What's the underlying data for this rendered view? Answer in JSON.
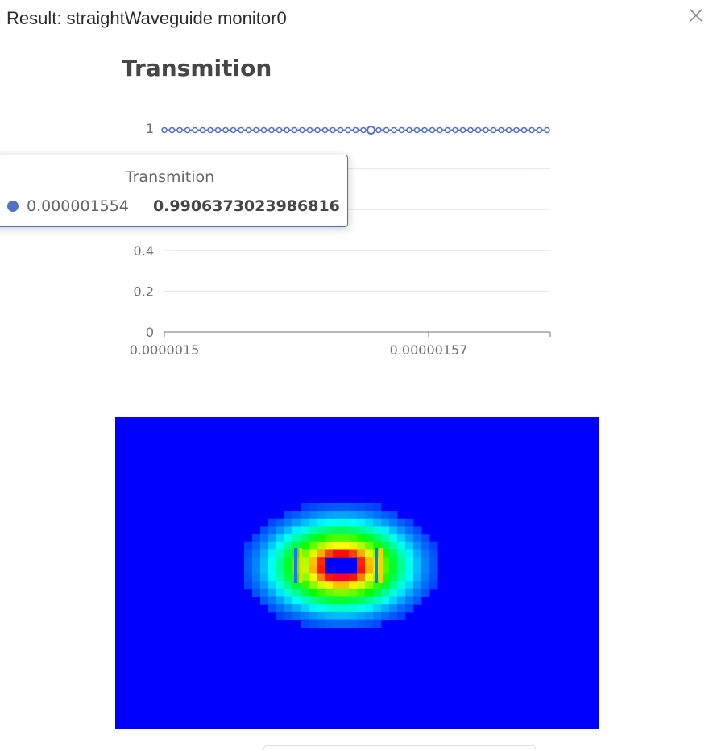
{
  "dialog": {
    "title": "Result: straightWaveguide monitor0",
    "close_icon": "close-icon"
  },
  "chart_data": [
    {
      "type": "line",
      "title": "Transmition",
      "series": [
        {
          "name": "Transmition",
          "color": "#5470c6",
          "marker": "hollow-circle",
          "points": 51,
          "x_start": 1.5e-06,
          "x_end": 1.6e-06,
          "y_values": [
            0.99,
            0.99,
            0.99,
            0.99,
            0.99,
            0.99,
            0.99,
            0.99,
            0.99,
            0.99,
            0.99,
            0.99,
            0.99,
            0.99,
            0.99,
            0.99,
            0.99,
            0.99,
            0.99,
            0.99,
            0.99,
            0.99,
            0.99,
            0.99,
            0.99,
            0.99,
            0.99,
            0.99,
            0.99,
            0.99,
            0.99,
            0.99,
            0.99,
            0.99,
            0.99,
            0.99,
            0.99,
            0.99,
            0.99,
            0.99,
            0.99,
            0.99,
            0.99,
            0.99,
            0.99,
            0.99,
            0.99,
            0.99,
            0.99,
            0.99,
            0.99
          ]
        }
      ],
      "yticks": [
        "0",
        "0.2",
        "0.4",
        "0.6",
        "0.8",
        "1"
      ],
      "xticks": [
        "0.0000015",
        "0.00000157"
      ],
      "ylim": [
        0,
        1
      ],
      "grid": true,
      "highlighted_index": 27
    },
    {
      "type": "heatmap",
      "colormap": "jet-like",
      "background_color": "#0000ff"
    }
  ],
  "tooltip": {
    "title": "Transmition",
    "x_value": "0.000001554",
    "y_value": "0.9906373023986816",
    "marker_color": "#5470c6"
  }
}
